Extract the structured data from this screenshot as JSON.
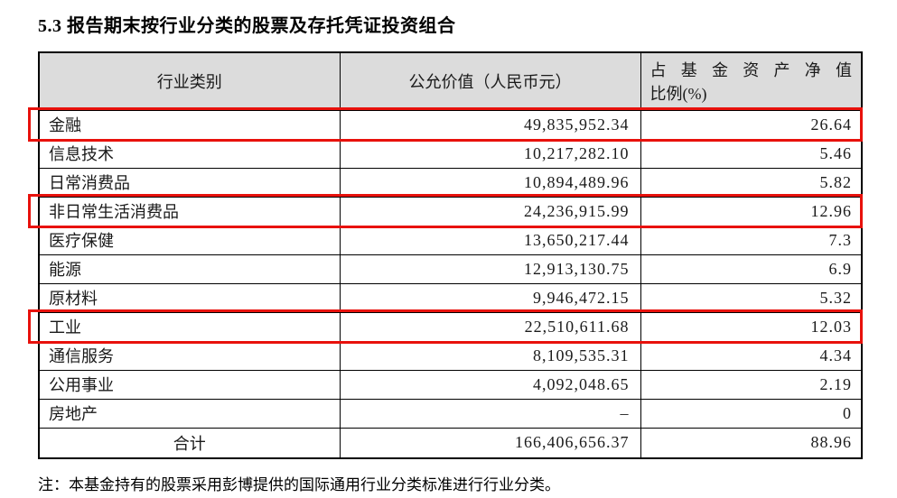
{
  "title": "5.3 报告期末按行业分类的股票及存托凭证投资组合",
  "table": {
    "columns": [
      {
        "label": "行业类别"
      },
      {
        "label": "公允价值（人民币元）"
      },
      {
        "label_line1": "占基金资产净值",
        "label_line2": "比例(%)"
      }
    ],
    "rows": [
      {
        "industry": "金融",
        "fair_value": "49,835,952.34",
        "pct_nav": "26.64",
        "highlighted": true,
        "is_total": false
      },
      {
        "industry": "信息技术",
        "fair_value": "10,217,282.10",
        "pct_nav": "5.46",
        "highlighted": false,
        "is_total": false
      },
      {
        "industry": "日常消费品",
        "fair_value": "10,894,489.96",
        "pct_nav": "5.82",
        "highlighted": false,
        "is_total": false
      },
      {
        "industry": "非日常生活消费品",
        "fair_value": "24,236,915.99",
        "pct_nav": "12.96",
        "highlighted": true,
        "is_total": false
      },
      {
        "industry": "医疗保健",
        "fair_value": "13,650,217.44",
        "pct_nav": "7.3",
        "highlighted": false,
        "is_total": false
      },
      {
        "industry": "能源",
        "fair_value": "12,913,130.75",
        "pct_nav": "6.9",
        "highlighted": false,
        "is_total": false
      },
      {
        "industry": "原材料",
        "fair_value": "9,946,472.15",
        "pct_nav": "5.32",
        "highlighted": false,
        "is_total": false
      },
      {
        "industry": "工业",
        "fair_value": "22,510,611.68",
        "pct_nav": "12.03",
        "highlighted": true,
        "is_total": false
      },
      {
        "industry": "通信服务",
        "fair_value": "8,109,535.31",
        "pct_nav": "4.34",
        "highlighted": false,
        "is_total": false
      },
      {
        "industry": "公用事业",
        "fair_value": "4,092,048.65",
        "pct_nav": "2.19",
        "highlighted": false,
        "is_total": false
      },
      {
        "industry": "房地产",
        "fair_value": "–",
        "pct_nav": "0",
        "highlighted": false,
        "is_total": false
      },
      {
        "industry": "合计",
        "fair_value": "166,406,656.37",
        "pct_nav": "88.96",
        "highlighted": false,
        "is_total": true
      }
    ],
    "highlight_color": "#e8110c",
    "header_bg_color": "#dcdcdc"
  },
  "note": "注：本基金持有的股票采用彭博提供的国际通用行业分类标准进行行业分类。"
}
